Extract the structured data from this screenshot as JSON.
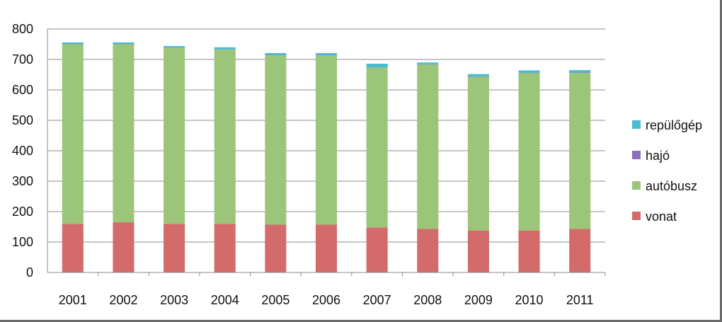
{
  "chart_data": {
    "type": "bar",
    "stacked": true,
    "title": "",
    "xlabel": "",
    "ylabel": "",
    "ylim": [
      0,
      800
    ],
    "yticks": [
      0,
      100,
      200,
      300,
      400,
      500,
      600,
      700,
      800
    ],
    "grid": true,
    "legend_position": "right",
    "categories": [
      "2001",
      "2002",
      "2003",
      "2004",
      "2005",
      "2006",
      "2007",
      "2008",
      "2009",
      "2010",
      "2011"
    ],
    "series": [
      {
        "name": "vonat",
        "color": "#d46b6b",
        "values": [
          160,
          165,
          160,
          160,
          157,
          157,
          148,
          143,
          138,
          138,
          143
        ]
      },
      {
        "name": "autóbusz",
        "color": "#9bc67a",
        "values": [
          590,
          585,
          578,
          572,
          557,
          557,
          525,
          540,
          505,
          517,
          513
        ]
      },
      {
        "name": "hajó",
        "color": "#8b72b8",
        "values": [
          1,
          1,
          1,
          1,
          1,
          1,
          1,
          1,
          1,
          1,
          1
        ]
      },
      {
        "name": "repülőgép",
        "color": "#4bbcd0",
        "values": [
          5,
          5,
          5,
          7,
          6,
          6,
          12,
          6,
          8,
          8,
          8
        ]
      }
    ]
  }
}
